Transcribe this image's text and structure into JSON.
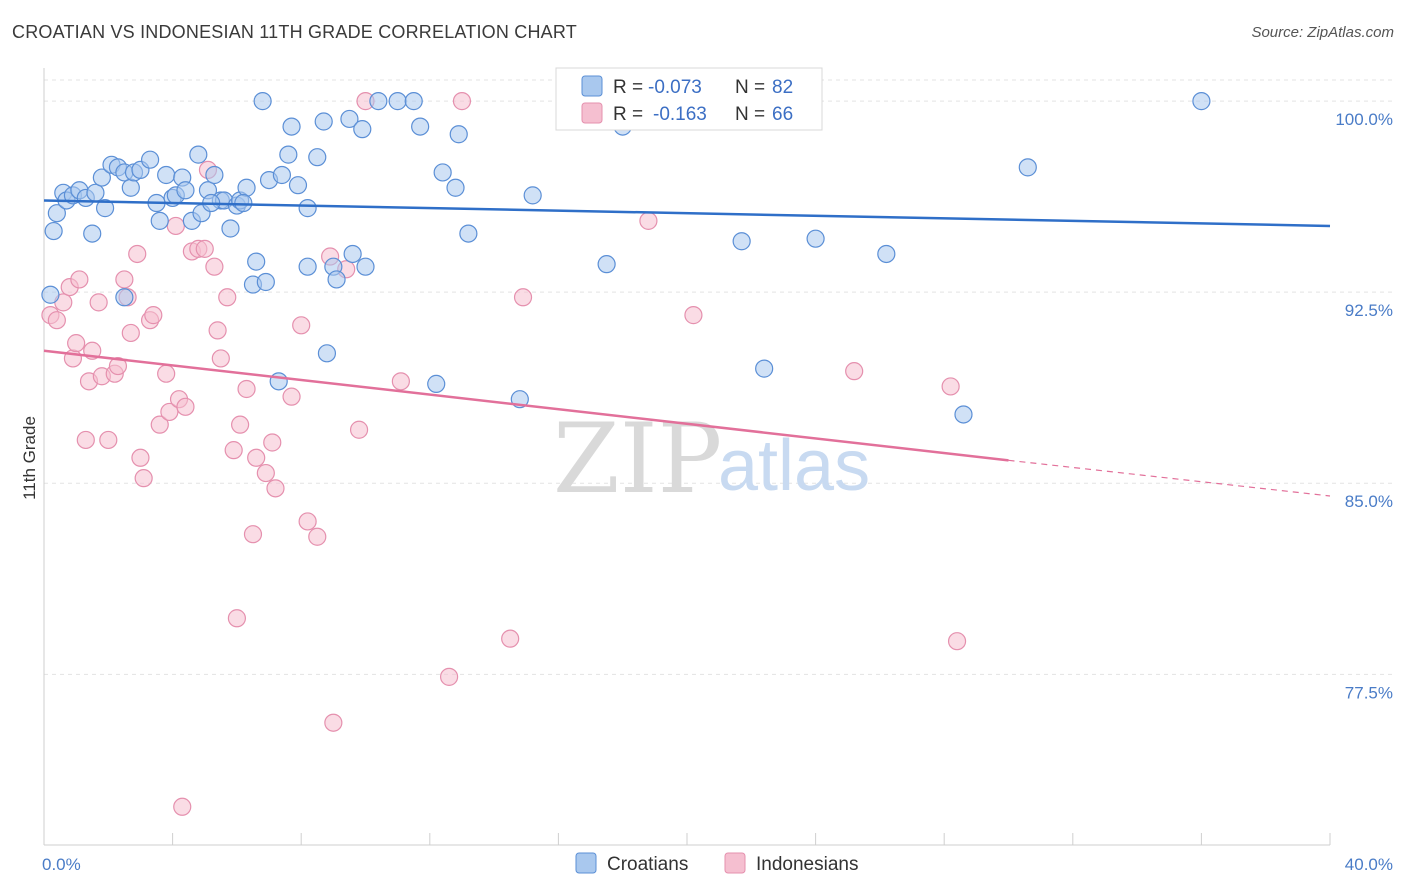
{
  "header": {
    "title": "CROATIAN VS INDONESIAN 11TH GRADE CORRELATION CHART",
    "source": "Source: ZipAtlas.com"
  },
  "watermark": {
    "zip": "ZIP",
    "atlas": "atlas"
  },
  "legend": {
    "row1": {
      "r_label": "R =",
      "r_value": "-0.073",
      "n_label": "N =",
      "n_value": "82"
    },
    "row2": {
      "r_label": "R =",
      "r_value": "-0.163",
      "n_label": "N =",
      "n_value": "66"
    }
  },
  "bottom_legend": {
    "croatians": "Croatians",
    "indonesians": "Indonesians"
  },
  "colors": {
    "croatian_fill": "#a9c8ee",
    "croatian_stroke": "#5b8fd6",
    "croatian_line": "#2f6fc8",
    "indonesian_fill": "#f5bfd0",
    "indonesian_stroke": "#e590ae",
    "indonesian_line": "#e2709a",
    "tick": "#4a7cc7",
    "grid": "#e3e3e3"
  },
  "chart_data": {
    "type": "scatter",
    "title": "CROATIAN VS INDONESIAN 11TH GRADE CORRELATION CHART",
    "xlabel": "",
    "ylabel": "11th Grade",
    "xlim": [
      0,
      40
    ],
    "ylim": [
      70.8,
      101.3
    ],
    "x_tick_labels": [
      "0.0%",
      "40.0%"
    ],
    "y_ticks": [
      77.5,
      85.0,
      92.5,
      100.0
    ],
    "y_tick_labels": [
      "77.5%",
      "85.0%",
      "92.5%",
      "100.0%"
    ],
    "grid": true,
    "legend_position": "top-center",
    "series": [
      {
        "name": "Croatians",
        "r": -0.073,
        "n": 82,
        "trend": {
          "x": [
            0,
            40
          ],
          "y": [
            96.1,
            95.1
          ]
        },
        "points": [
          [
            0.3,
            94.9
          ],
          [
            0.4,
            95.6
          ],
          [
            0.6,
            96.4
          ],
          [
            0.7,
            96.1
          ],
          [
            0.9,
            96.3
          ],
          [
            1.1,
            96.5
          ],
          [
            1.3,
            96.2
          ],
          [
            1.5,
            94.8
          ],
          [
            1.6,
            96.4
          ],
          [
            1.8,
            97.0
          ],
          [
            1.9,
            95.8
          ],
          [
            2.1,
            97.5
          ],
          [
            2.3,
            97.4
          ],
          [
            2.5,
            97.2
          ],
          [
            2.7,
            96.6
          ],
          [
            2.8,
            97.2
          ],
          [
            3.0,
            97.3
          ],
          [
            3.3,
            97.7
          ],
          [
            3.5,
            96.0
          ],
          [
            3.6,
            95.3
          ],
          [
            3.8,
            97.1
          ],
          [
            4.0,
            96.2
          ],
          [
            4.1,
            96.3
          ],
          [
            4.3,
            97.0
          ],
          [
            4.4,
            96.5
          ],
          [
            4.6,
            95.3
          ],
          [
            4.8,
            97.9
          ],
          [
            4.9,
            95.6
          ],
          [
            5.1,
            96.5
          ],
          [
            5.3,
            97.1
          ],
          [
            5.5,
            96.1
          ],
          [
            5.6,
            96.1
          ],
          [
            5.8,
            95.0
          ],
          [
            6.0,
            95.9
          ],
          [
            6.1,
            96.1
          ],
          [
            6.3,
            96.6
          ],
          [
            6.5,
            92.8
          ],
          [
            6.6,
            93.7
          ],
          [
            6.9,
            92.9
          ],
          [
            7.0,
            96.9
          ],
          [
            7.4,
            97.1
          ],
          [
            7.6,
            97.9
          ],
          [
            7.7,
            99.0
          ],
          [
            7.9,
            96.7
          ],
          [
            8.2,
            95.8
          ],
          [
            8.2,
            93.5
          ],
          [
            8.5,
            97.8
          ],
          [
            8.7,
            99.2
          ],
          [
            9.0,
            93.5
          ],
          [
            9.1,
            93.0
          ],
          [
            9.5,
            99.3
          ],
          [
            9.6,
            94.0
          ],
          [
            9.9,
            98.9
          ],
          [
            10.0,
            93.5
          ],
          [
            10.4,
            100.0
          ],
          [
            11.0,
            100.0
          ],
          [
            11.5,
            100.0
          ],
          [
            11.7,
            99.0
          ],
          [
            12.2,
            88.9
          ],
          [
            12.4,
            97.2
          ],
          [
            12.8,
            96.6
          ],
          [
            12.9,
            98.7
          ],
          [
            13.2,
            94.8
          ],
          [
            14.8,
            88.3
          ],
          [
            15.2,
            96.3
          ],
          [
            17.5,
            93.6
          ],
          [
            18.0,
            99.0
          ],
          [
            18.5,
            100.0
          ],
          [
            21.7,
            94.5
          ],
          [
            22.4,
            89.5
          ],
          [
            24.0,
            94.6
          ],
          [
            26.2,
            94.0
          ],
          [
            28.6,
            87.7
          ],
          [
            30.6,
            97.4
          ],
          [
            36.0,
            100.0
          ],
          [
            6.8,
            100.0
          ],
          [
            2.5,
            92.3
          ],
          [
            7.3,
            89.0
          ],
          [
            8.8,
            90.1
          ],
          [
            0.2,
            92.4
          ],
          [
            5.2,
            96.0
          ],
          [
            6.2,
            96.0
          ]
        ]
      },
      {
        "name": "Indonesians",
        "r": -0.163,
        "n": 66,
        "trend": {
          "x": [
            0,
            30
          ],
          "y": [
            90.2,
            85.9
          ]
        },
        "trend_dashed": {
          "x": [
            30,
            40
          ],
          "y": [
            85.9,
            84.5
          ]
        },
        "points": [
          [
            0.2,
            91.6
          ],
          [
            0.4,
            91.4
          ],
          [
            0.6,
            92.1
          ],
          [
            0.8,
            92.7
          ],
          [
            0.9,
            89.9
          ],
          [
            1.0,
            90.5
          ],
          [
            1.1,
            93.0
          ],
          [
            1.3,
            86.7
          ],
          [
            1.4,
            89.0
          ],
          [
            1.5,
            90.2
          ],
          [
            1.7,
            92.1
          ],
          [
            1.8,
            89.2
          ],
          [
            2.0,
            86.7
          ],
          [
            2.2,
            89.3
          ],
          [
            2.3,
            89.6
          ],
          [
            2.5,
            93.0
          ],
          [
            2.6,
            92.3
          ],
          [
            2.7,
            90.9
          ],
          [
            2.9,
            94.0
          ],
          [
            3.0,
            86.0
          ],
          [
            3.1,
            85.2
          ],
          [
            3.3,
            91.4
          ],
          [
            3.4,
            91.6
          ],
          [
            3.6,
            87.3
          ],
          [
            3.8,
            89.3
          ],
          [
            3.9,
            87.8
          ],
          [
            4.1,
            95.1
          ],
          [
            4.2,
            88.3
          ],
          [
            4.3,
            72.3
          ],
          [
            4.4,
            88.0
          ],
          [
            4.6,
            94.1
          ],
          [
            4.8,
            94.2
          ],
          [
            5.0,
            94.2
          ],
          [
            5.1,
            97.3
          ],
          [
            5.3,
            93.5
          ],
          [
            5.4,
            91.0
          ],
          [
            5.5,
            89.9
          ],
          [
            5.7,
            92.3
          ],
          [
            5.9,
            86.3
          ],
          [
            6.0,
            79.7
          ],
          [
            6.1,
            87.3
          ],
          [
            6.3,
            88.7
          ],
          [
            6.5,
            83.0
          ],
          [
            6.6,
            86.0
          ],
          [
            6.9,
            85.4
          ],
          [
            7.1,
            86.6
          ],
          [
            7.2,
            84.8
          ],
          [
            7.7,
            88.4
          ],
          [
            8.0,
            91.2
          ],
          [
            8.2,
            83.5
          ],
          [
            8.5,
            82.9
          ],
          [
            8.9,
            93.9
          ],
          [
            9.0,
            75.6
          ],
          [
            9.4,
            93.4
          ],
          [
            9.8,
            87.1
          ],
          [
            10.0,
            100.0
          ],
          [
            11.1,
            89.0
          ],
          [
            12.6,
            77.4
          ],
          [
            13.0,
            100.0
          ],
          [
            14.5,
            78.9
          ],
          [
            14.9,
            92.3
          ],
          [
            18.8,
            95.3
          ],
          [
            20.2,
            91.6
          ],
          [
            25.2,
            89.4
          ],
          [
            28.2,
            88.8
          ],
          [
            28.4,
            78.8
          ]
        ]
      }
    ]
  }
}
